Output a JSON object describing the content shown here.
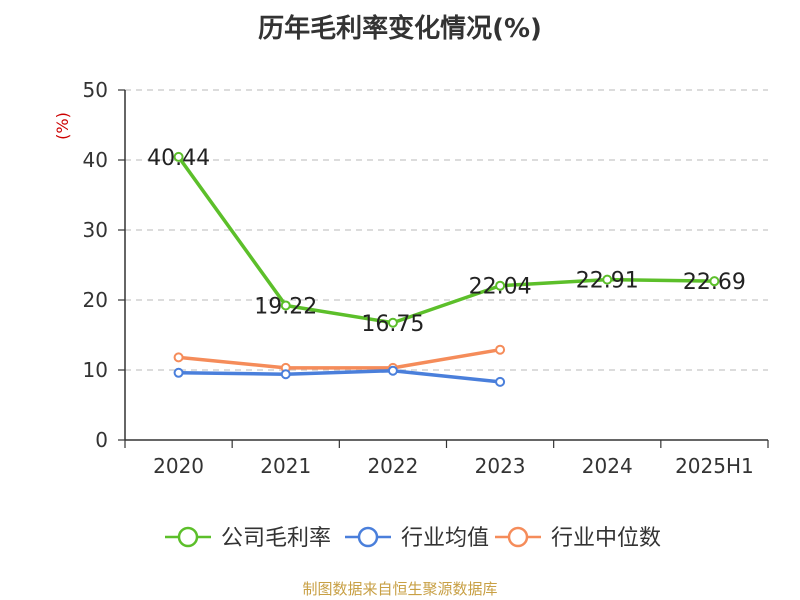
{
  "chart_data": {
    "type": "line",
    "title": "历年毛利率变化情况(%)",
    "ylabel": "(%)",
    "xlabel": "",
    "categories": [
      "2020",
      "2021",
      "2022",
      "2023",
      "2024",
      "2025H1"
    ],
    "ylim": [
      0,
      50
    ],
    "yticks": [
      0,
      10,
      20,
      30,
      40,
      50
    ],
    "grid": true,
    "legend_position": "bottom",
    "series": [
      {
        "name": "公司毛利率",
        "color": "#5cbf2a",
        "values": [
          40.44,
          19.22,
          16.75,
          22.04,
          22.91,
          22.69
        ],
        "labels": [
          "40.44",
          "19.22",
          "16.75",
          "22.04",
          "22.91",
          "22.69"
        ]
      },
      {
        "name": "行业均值",
        "color": "#4a7fdb",
        "values": [
          9.6,
          9.4,
          9.9,
          8.3,
          null,
          null
        ]
      },
      {
        "name": "行业中位数",
        "color": "#f58c5a",
        "values": [
          11.8,
          10.3,
          10.3,
          12.9,
          null,
          null
        ]
      }
    ]
  },
  "footer": {
    "source": "制图数据来自恒生聚源数据库"
  }
}
